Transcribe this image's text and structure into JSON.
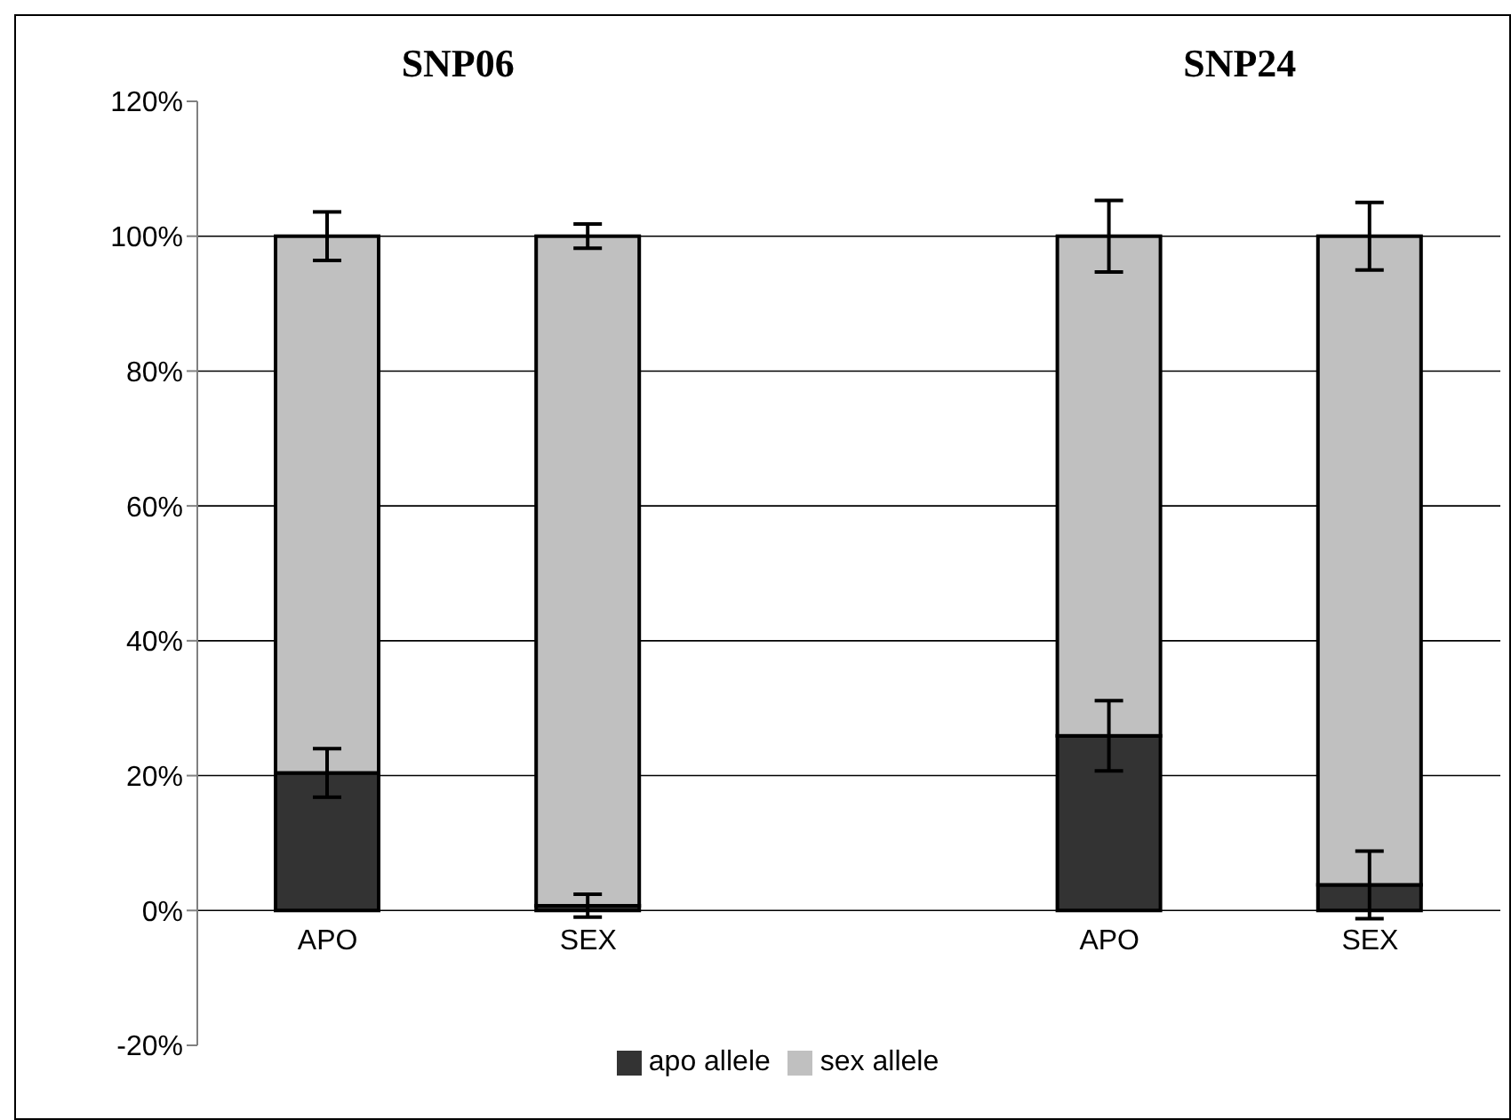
{
  "chart_data": {
    "type": "bar",
    "stacked": true,
    "categories": [
      "APO",
      "SEX",
      null,
      "APO",
      "SEX"
    ],
    "series": [
      {
        "name": "apo allele",
        "color": "#333333",
        "values": [
          20.4,
          0.7,
          null,
          25.9,
          3.8
        ],
        "errors": [
          3.6,
          1.7,
          null,
          5.2,
          5.0
        ]
      },
      {
        "name": "sex allele",
        "color": "#c0c0c0",
        "values": [
          79.6,
          99.3,
          null,
          74.1,
          96.2
        ],
        "errors": [
          3.6,
          1.8,
          null,
          5.3,
          5.0
        ]
      }
    ],
    "ylim": [
      -20,
      120
    ],
    "yticks": [
      {
        "value": -20,
        "label": "-20%"
      },
      {
        "value": 0,
        "label": "0%"
      },
      {
        "value": 20,
        "label": "20%"
      },
      {
        "value": 40,
        "label": "40%"
      },
      {
        "value": 60,
        "label": "60%"
      },
      {
        "value": 80,
        "label": "80%"
      },
      {
        "value": 100,
        "label": "100%"
      },
      {
        "value": 120,
        "label": "120%"
      }
    ],
    "grid": "y",
    "legend": "bottom",
    "annotations": [
      "SNP06",
      "SNP24"
    ]
  }
}
